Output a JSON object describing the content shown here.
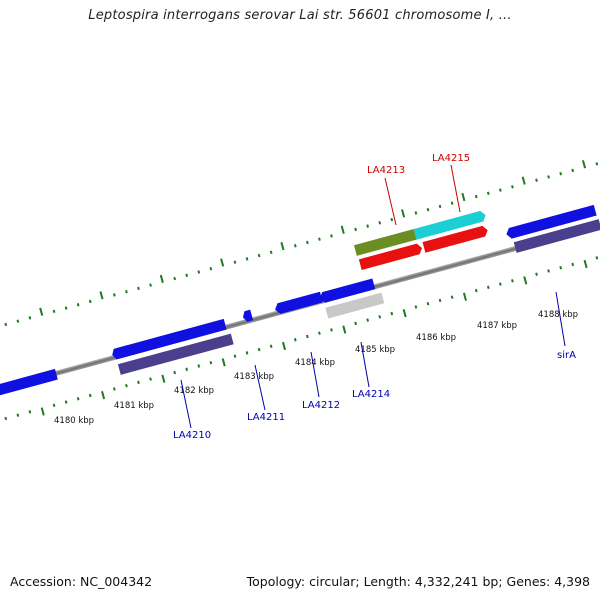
{
  "title": "Leptospira interrogans serovar Lai str. 56601 chromosome I, ...",
  "footer": {
    "accession": "Accession: NC_004342",
    "summary": "Topology: circular; Length: 4,332,241 bp; Genes: 4,398"
  },
  "colors": {
    "backbone": "#8a8a8a",
    "tick": "#1f7a1f",
    "forward_cds": "#1010e0",
    "reverse_cds": "#4a3f8c",
    "reverse_red": "#e81010",
    "olive": "#6b8e23",
    "cyan": "#1ccfd4",
    "gray_feature": "#c8c8c8",
    "label_blue": "#0000b0",
    "label_red": "#cc0000"
  },
  "scale": {
    "kbp_labels": [
      "4180 kbp",
      "4181 kbp",
      "4182 kbp",
      "4183 kbp",
      "4184 kbp",
      "4185 kbp",
      "4186 kbp",
      "4187 kbp",
      "4188 kbp"
    ]
  },
  "gene_labels": {
    "LA4213": "LA4213",
    "LA4215": "LA4215",
    "LA4210": "LA4210",
    "LA4211": "LA4211",
    "LA4212": "LA4212",
    "LA4214": "LA4214",
    "sirA": "sirA"
  },
  "icons": {
    "feature": "gene-arrow-icon"
  }
}
